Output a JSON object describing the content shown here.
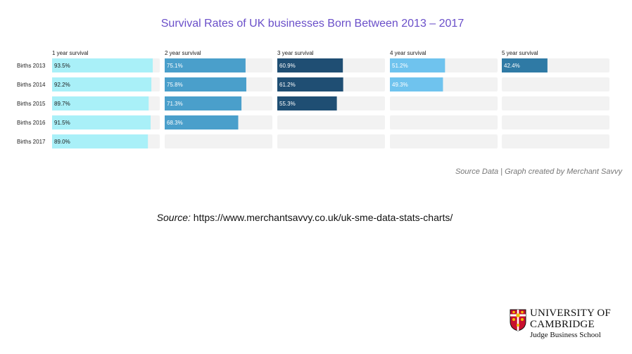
{
  "title": "Survival Rates of UK businesses Born Between 2013 – 2017",
  "credit": "Source Data | Graph created by Merchant Savvy",
  "source": {
    "label": "Source:",
    "url": "https://www.merchantsavvy.co.uk/uk-sme-data-stats-charts/"
  },
  "logo": {
    "line1": "UNIVERSITY OF",
    "line2": "CAMBRIDGE",
    "line3": "Judge Business School"
  },
  "colors": {
    "track": "#f2f2f2",
    "year1": "#a9f0f8",
    "year2": "#4a9fcb",
    "year3": "#1f4e73",
    "year4": "#6fc3ee",
    "year5": "#2f7aa5",
    "title": "#6a4fc9"
  },
  "chart_data": {
    "type": "table",
    "columns": [
      "1 year survival",
      "2 year survival",
      "3 year survival",
      "4 year survival",
      "5 year survival"
    ],
    "rows": [
      "Births 2013",
      "Births 2014",
      "Births 2015",
      "Births 2016",
      "Births 2017"
    ],
    "values": [
      [
        93.5,
        75.1,
        60.9,
        51.2,
        42.4
      ],
      [
        92.2,
        75.8,
        61.2,
        49.3,
        null
      ],
      [
        89.7,
        71.3,
        55.3,
        null,
        null
      ],
      [
        91.5,
        68.3,
        null,
        null,
        null
      ],
      [
        89.0,
        null,
        null,
        null,
        null
      ]
    ],
    "value_range": [
      0,
      100
    ]
  }
}
